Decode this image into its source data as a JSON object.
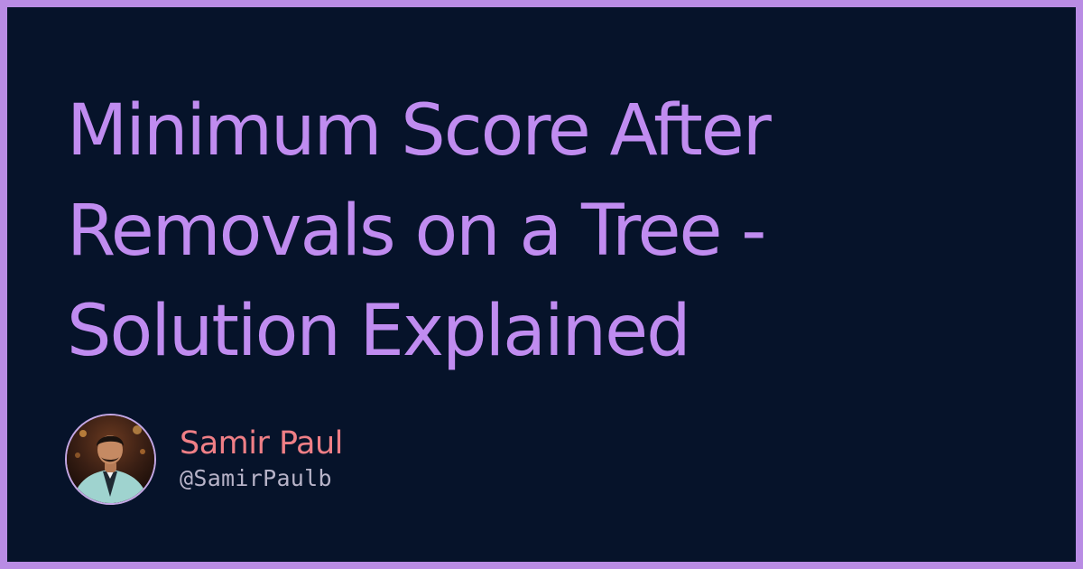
{
  "title": "Minimum Score After Removals on a Tree - Solution Explained",
  "author": {
    "name": "Samir Paul",
    "handle": "@SamirPaulb",
    "avatar": "author-photo"
  },
  "colors": {
    "border": "#b98ce4",
    "background": "#06132a",
    "title": "#c08cf0",
    "author_name": "#ef7f86",
    "author_handle": "#b7b3c8"
  }
}
